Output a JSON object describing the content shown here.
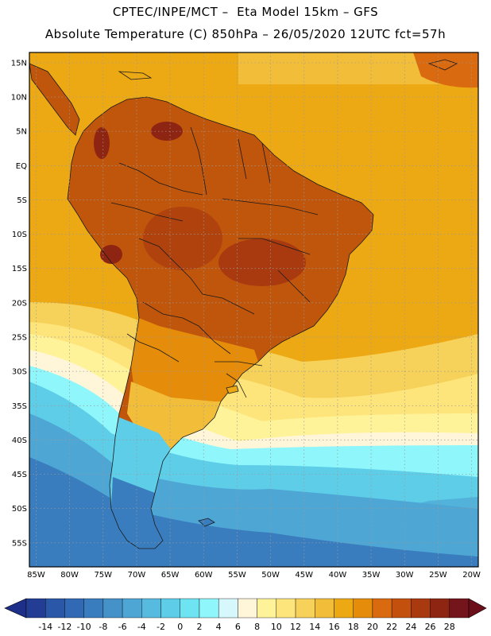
{
  "title": {
    "line1": "CPTEC/INPE/MCT –  Eta Model 15km – GFS",
    "line2": "Absolute Temperature (C) 850hPa – 26/05/2020 12UTC fct=57h"
  },
  "colors": {
    "land_hot": "#c0560c",
    "land_warm": "#d96a10",
    "ocean_warm": "#eda913",
    "frame": "#000000",
    "grid": "#9a9a9a",
    "border": "#1a1a1a"
  },
  "map": {
    "lat_labels": [
      "15N",
      "10N",
      "5N",
      "EQ",
      "5S",
      "10S",
      "15S",
      "20S",
      "25S",
      "30S",
      "35S",
      "40S",
      "45S",
      "50S",
      "55S"
    ],
    "lon_labels": [
      "85W",
      "80W",
      "75W",
      "70W",
      "65W",
      "60W",
      "55W",
      "50W",
      "45W",
      "40W",
      "35W",
      "30W",
      "25W",
      "20W"
    ],
    "lat_values": [
      15,
      10,
      5,
      0,
      -5,
      -10,
      -15,
      -20,
      -25,
      -30,
      -35,
      -40,
      -45,
      -50,
      -55
    ],
    "lon_values": [
      -85,
      -80,
      -75,
      -70,
      -65,
      -60,
      -55,
      -50,
      -45,
      -40,
      -35,
      -30,
      -25,
      -20
    ]
  },
  "colorbar": {
    "labels": [
      "-14",
      "-12",
      "-10",
      "-8",
      "-6",
      "-4",
      "-2",
      "0",
      "2",
      "4",
      "6",
      "8",
      "10",
      "12",
      "14",
      "16",
      "18",
      "20",
      "22",
      "24",
      "26",
      "28"
    ],
    "low_color": "#1e2f8a",
    "high_color": "#6b0f1a",
    "colors": [
      "#233d95",
      "#2a57a8",
      "#3169b4",
      "#3a7dbf",
      "#4592c8",
      "#4ea6d4",
      "#56bbdf",
      "#5ecde8",
      "#6ee4f2",
      "#8ff6fb",
      "#d6f7fb",
      "#fff6d9",
      "#fff39a",
      "#fde57c",
      "#f7d25a",
      "#f2be3a",
      "#eda913",
      "#e58c0a",
      "#d96a10",
      "#c4500e",
      "#a93a10",
      "#8e2512",
      "#73151a"
    ]
  }
}
